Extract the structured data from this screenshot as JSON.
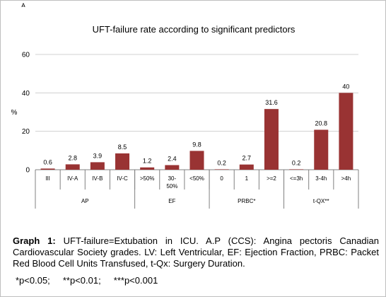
{
  "corner_mark": "A",
  "chart_data": {
    "type": "bar",
    "title": "UFT-failure rate according to significant predictors",
    "ylabel": "%",
    "ylim": [
      0,
      60
    ],
    "yticks": [
      0,
      20,
      40,
      60
    ],
    "grid": true,
    "legend": "none",
    "bar_color": "#993333",
    "categories": [
      "III",
      "IV-A",
      "IV-B",
      "IV-C",
      ">50%",
      "30-50%",
      "<50%",
      "0",
      "1",
      ">=2",
      "<=3h",
      "3-4h",
      ">4h"
    ],
    "category_lines": [
      [
        "III"
      ],
      [
        "IV-A"
      ],
      [
        "IV-B"
      ],
      [
        "IV-C"
      ],
      [
        ">50%"
      ],
      [
        "30-",
        "50%"
      ],
      [
        "<50%"
      ],
      [
        "0"
      ],
      [
        "1"
      ],
      [
        ">=2"
      ],
      [
        "<=3h"
      ],
      [
        "3-4h"
      ],
      [
        ">4h"
      ]
    ],
    "values": [
      0.6,
      2.8,
      3.9,
      8.5,
      1.2,
      2.4,
      9.8,
      0.2,
      2.7,
      31.6,
      0.2,
      20.8,
      40
    ],
    "value_labels": [
      "0.6",
      "2.8",
      "3.9",
      "8.5",
      "1.2",
      "2.4",
      "9.8",
      "0.2",
      "2.7",
      "31.6",
      "0.2",
      "20.8",
      "40"
    ],
    "groups": [
      {
        "name": "AP",
        "count": 4
      },
      {
        "name": "EF",
        "count": 3
      },
      {
        "name": "PRBC*",
        "count": 3
      },
      {
        "name": "t-QX**",
        "count": 3
      }
    ]
  },
  "caption": {
    "label": "Graph 1:",
    "text": " UFT-failure=Extubation in ICU. A.P (CCS): Angina pectoris Canadian Cardiovascular Society grades. LV: Left Ventricular, EF: Ejection Fraction, PRBC: Packet Red Blood Cell Units Transfused, t-Qx: Surgery Duration."
  },
  "footnote": "*p<0.05;     **p<0.01;     ***p<0.001"
}
